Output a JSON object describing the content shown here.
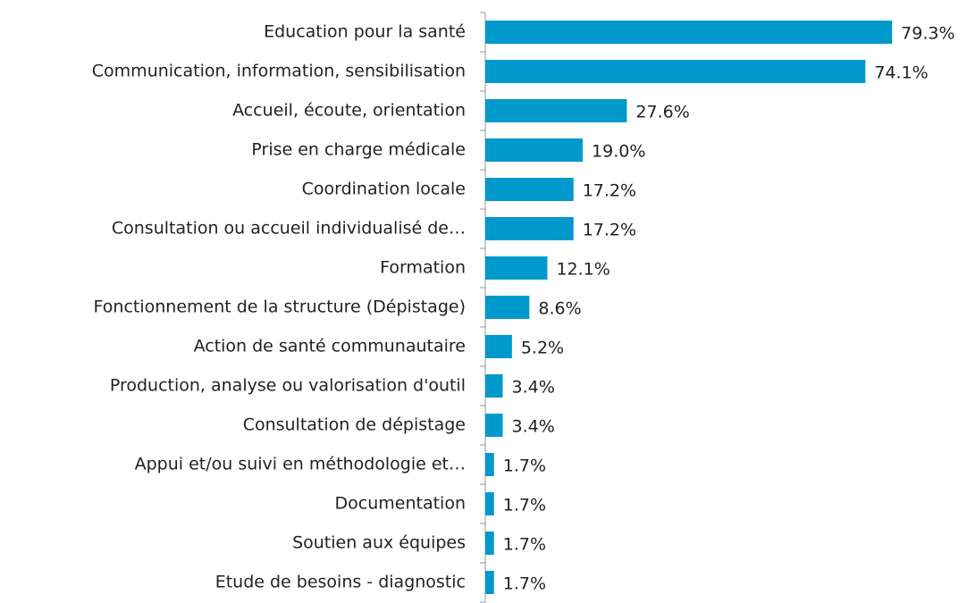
{
  "chart_data": {
    "type": "bar",
    "orientation": "horizontal",
    "color": "#0099cc",
    "categories": [
      "Education pour la santé",
      "Communication, information, sensibilisation",
      "Accueil, écoute, orientation",
      "Prise en charge médicale",
      "Coordination locale",
      "Consultation ou accueil individualisé de…",
      "Formation",
      "Fonctionnement de la structure (Dépistage)",
      "Action de santé communautaire",
      "Production, analyse ou valorisation d'outil",
      "Consultation de dépistage",
      "Appui et/ou suivi en méthodologie et…",
      "Documentation",
      "Soutien aux équipes",
      "Etude de besoins - diagnostic"
    ],
    "values": [
      79.3,
      74.1,
      27.6,
      19.0,
      17.2,
      17.2,
      12.1,
      8.6,
      5.2,
      3.4,
      3.4,
      1.7,
      1.7,
      1.7,
      1.7
    ],
    "value_labels": [
      "79.3%",
      "74.1%",
      "27.6%",
      "19.0%",
      "17.2%",
      "17.2%",
      "12.1%",
      "8.6%",
      "5.2%",
      "3.4%",
      "3.4%",
      "1.7%",
      "1.7%",
      "1.7%",
      "1.7%"
    ]
  }
}
